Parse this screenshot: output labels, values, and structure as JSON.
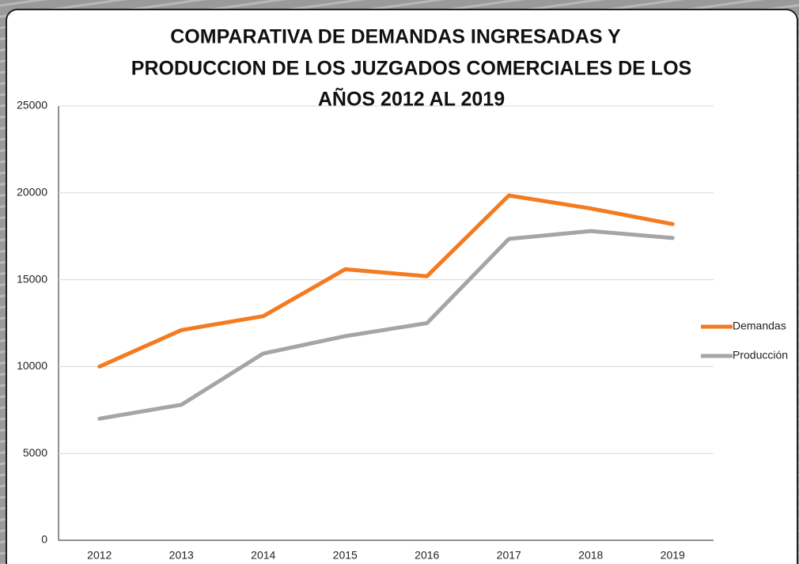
{
  "chart_data": {
    "type": "line",
    "title": [
      "COMPARATIVA DE DEMANDAS INGRESADAS Y",
      "PRODUCCION DE LOS JUZGADOS COMERCIALES DE LOS",
      "AÑOS 2012 AL 2019"
    ],
    "categories": [
      "2012",
      "2013",
      "2014",
      "2015",
      "2016",
      "2017",
      "2018",
      "2019"
    ],
    "series": [
      {
        "name": "Demandas",
        "color": "#f47b20",
        "values": [
          10000,
          12100,
          12900,
          15600,
          15200,
          19850,
          19100,
          18200
        ]
      },
      {
        "name": "Producción",
        "color": "#a5a5a5",
        "values": [
          7000,
          7800,
          10750,
          11750,
          12500,
          17350,
          17800,
          17400
        ]
      }
    ],
    "ylim": [
      0,
      25000
    ],
    "yticks": [
      0,
      5000,
      10000,
      15000,
      20000,
      25000
    ],
    "grid": true,
    "legend": "right"
  }
}
